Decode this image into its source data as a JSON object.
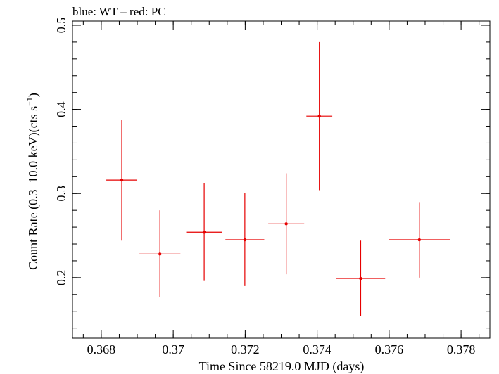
{
  "chart_data": {
    "type": "scatter",
    "title": "blue: WT – red: PC",
    "xlabel": "Time Since 58219.0 MJD (days)",
    "ylabel": "Count Rate (0.3–10.0 keV)(cts s",
    "ylabel_sup": "−1",
    "ylabel_tail": ")",
    "xlim": [
      0.3672,
      0.3788
    ],
    "ylim": [
      0.128,
      0.505
    ],
    "x_major_ticks": [
      0.368,
      0.37,
      0.372,
      0.374,
      0.376,
      0.378
    ],
    "x_tick_labels": [
      "0.368",
      "0.37",
      "0.372",
      "0.374",
      "0.376",
      "0.378"
    ],
    "x_minor_step": 0.0005,
    "y_major_ticks": [
      0.2,
      0.3,
      0.4,
      0.5
    ],
    "y_tick_labels": [
      "0.2",
      "0.3",
      "0.4",
      "0.5"
    ],
    "y_minor_step": 0.02,
    "grid": false,
    "series": [
      {
        "color": "#e60000",
        "points": [
          {
            "x": 0.36857,
            "xerr": 0.00043,
            "y": 0.316,
            "yerr_low": 0.072,
            "yerr_high": 0.072
          },
          {
            "x": 0.36963,
            "xerr": 0.00057,
            "y": 0.228,
            "yerr_low": 0.051,
            "yerr_high": 0.052
          },
          {
            "x": 0.37086,
            "xerr": 0.0005,
            "y": 0.254,
            "yerr_low": 0.058,
            "yerr_high": 0.058
          },
          {
            "x": 0.37199,
            "xerr": 0.00054,
            "y": 0.245,
            "yerr_low": 0.055,
            "yerr_high": 0.056
          },
          {
            "x": 0.37314,
            "xerr": 0.0005,
            "y": 0.264,
            "yerr_low": 0.06,
            "yerr_high": 0.06
          },
          {
            "x": 0.37406,
            "xerr": 0.00036,
            "y": 0.392,
            "yerr_low": 0.088,
            "yerr_high": 0.088
          },
          {
            "x": 0.37521,
            "xerr": 0.00068,
            "y": 0.199,
            "yerr_low": 0.045,
            "yerr_high": 0.045
          },
          {
            "x": 0.37684,
            "xerr": 0.00085,
            "y": 0.245,
            "yerr_low": 0.045,
            "yerr_high": 0.044
          }
        ]
      }
    ]
  }
}
